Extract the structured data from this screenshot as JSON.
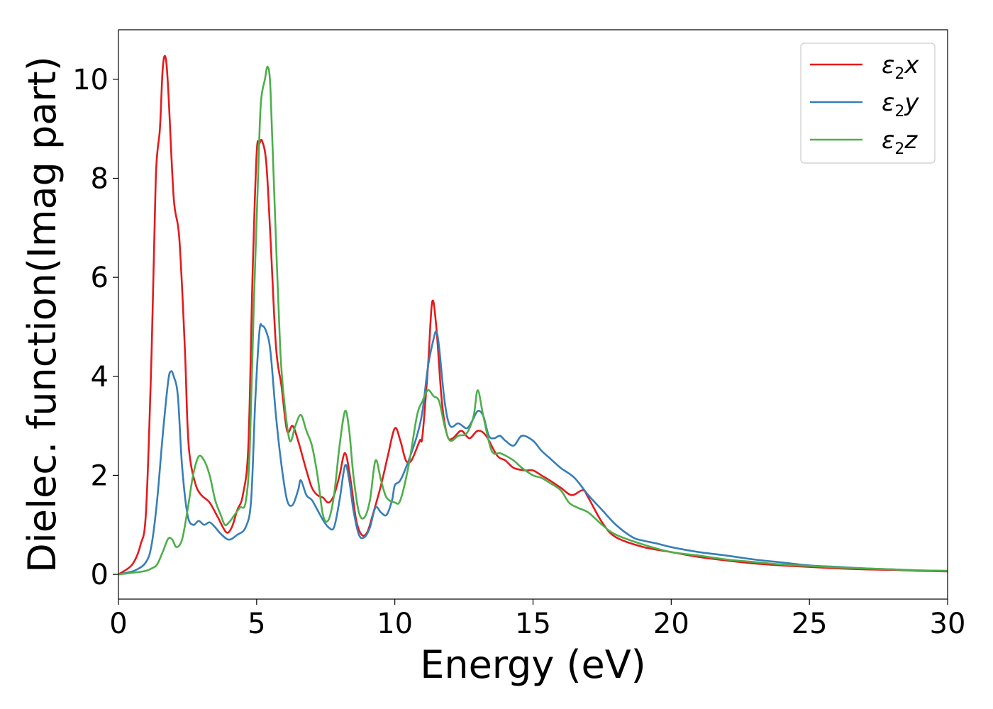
{
  "chart_data": {
    "type": "line",
    "xlabel": "Energy (eV)",
    "ylabel": "Dielec. function(Imag part)",
    "xlim": [
      0,
      30
    ],
    "ylim": [
      -0.5,
      11
    ],
    "x_ticks": [
      0,
      5,
      10,
      15,
      20,
      25,
      30
    ],
    "y_ticks": [
      0,
      2,
      4,
      6,
      8,
      10
    ],
    "grid": false,
    "legend_position": "top-right",
    "series": [
      {
        "name": "ε2x",
        "sym": "ε",
        "sub": "2",
        "var": "x",
        "color": "#e41a1c",
        "points": [
          [
            0,
            0
          ],
          [
            0.5,
            0.2
          ],
          [
            0.8,
            0.6
          ],
          [
            1.0,
            1.3
          ],
          [
            1.2,
            4.5
          ],
          [
            1.35,
            8.0
          ],
          [
            1.5,
            9.0
          ],
          [
            1.6,
            10.2
          ],
          [
            1.7,
            10.45
          ],
          [
            1.8,
            9.8
          ],
          [
            2.0,
            7.6
          ],
          [
            2.2,
            6.8
          ],
          [
            2.4,
            4.6
          ],
          [
            2.5,
            3.0
          ],
          [
            2.6,
            2.3
          ],
          [
            2.8,
            1.8
          ],
          [
            3.0,
            1.6
          ],
          [
            3.3,
            1.45
          ],
          [
            3.6,
            1.15
          ],
          [
            3.9,
            0.85
          ],
          [
            4.1,
            0.95
          ],
          [
            4.3,
            1.3
          ],
          [
            4.5,
            1.6
          ],
          [
            4.7,
            2.6
          ],
          [
            4.85,
            6.0
          ],
          [
            5.0,
            8.5
          ],
          [
            5.1,
            8.7
          ],
          [
            5.2,
            8.75
          ],
          [
            5.35,
            8.3
          ],
          [
            5.5,
            6.8
          ],
          [
            5.7,
            4.6
          ],
          [
            5.9,
            3.8
          ],
          [
            6.1,
            2.9
          ],
          [
            6.3,
            3.0
          ],
          [
            6.5,
            2.7
          ],
          [
            6.8,
            2.1
          ],
          [
            7.0,
            1.75
          ],
          [
            7.2,
            1.6
          ],
          [
            7.4,
            1.55
          ],
          [
            7.6,
            1.45
          ],
          [
            7.8,
            1.6
          ],
          [
            8.0,
            2.0
          ],
          [
            8.2,
            2.45
          ],
          [
            8.4,
            1.9
          ],
          [
            8.6,
            1.1
          ],
          [
            8.8,
            0.8
          ],
          [
            9.0,
            0.85
          ],
          [
            9.2,
            1.2
          ],
          [
            9.5,
            1.8
          ],
          [
            9.75,
            2.4
          ],
          [
            10.0,
            2.95
          ],
          [
            10.2,
            2.7
          ],
          [
            10.4,
            2.3
          ],
          [
            10.6,
            2.3
          ],
          [
            10.9,
            2.7
          ],
          [
            11.0,
            2.8
          ],
          [
            11.2,
            4.2
          ],
          [
            11.35,
            5.5
          ],
          [
            11.5,
            5.0
          ],
          [
            11.7,
            3.5
          ],
          [
            11.9,
            2.8
          ],
          [
            12.1,
            2.75
          ],
          [
            12.4,
            2.9
          ],
          [
            12.7,
            2.75
          ],
          [
            13.0,
            2.9
          ],
          [
            13.3,
            2.8
          ],
          [
            13.7,
            2.4
          ],
          [
            14.0,
            2.3
          ],
          [
            14.3,
            2.15
          ],
          [
            14.7,
            2.1
          ],
          [
            15.0,
            2.1
          ],
          [
            15.3,
            2.0
          ],
          [
            15.6,
            1.9
          ],
          [
            16.0,
            1.75
          ],
          [
            16.4,
            1.6
          ],
          [
            16.8,
            1.7
          ],
          [
            17.0,
            1.55
          ],
          [
            17.5,
            1.05
          ],
          [
            18.0,
            0.75
          ],
          [
            19.0,
            0.55
          ],
          [
            20.0,
            0.45
          ],
          [
            21.0,
            0.35
          ],
          [
            22.0,
            0.28
          ],
          [
            23.0,
            0.22
          ],
          [
            24.0,
            0.18
          ],
          [
            25.0,
            0.15
          ],
          [
            26.0,
            0.12
          ],
          [
            27.0,
            0.1
          ],
          [
            28.0,
            0.09
          ],
          [
            29.0,
            0.07
          ],
          [
            30.0,
            0.06
          ]
        ]
      },
      {
        "name": "ε2y",
        "sym": "ε",
        "sub": "2",
        "var": "y",
        "color": "#377eb8",
        "points": [
          [
            0,
            0
          ],
          [
            0.6,
            0.08
          ],
          [
            1.0,
            0.25
          ],
          [
            1.2,
            0.6
          ],
          [
            1.4,
            1.5
          ],
          [
            1.6,
            2.8
          ],
          [
            1.8,
            3.9
          ],
          [
            1.9,
            4.1
          ],
          [
            2.0,
            4.0
          ],
          [
            2.15,
            3.6
          ],
          [
            2.3,
            2.2
          ],
          [
            2.5,
            1.2
          ],
          [
            2.7,
            1.0
          ],
          [
            2.9,
            1.08
          ],
          [
            3.1,
            1.0
          ],
          [
            3.3,
            1.05
          ],
          [
            3.5,
            0.95
          ],
          [
            3.7,
            0.82
          ],
          [
            4.0,
            0.7
          ],
          [
            4.3,
            0.8
          ],
          [
            4.6,
            0.95
          ],
          [
            4.8,
            1.5
          ],
          [
            4.95,
            3.5
          ],
          [
            5.1,
            4.9
          ],
          [
            5.2,
            5.02
          ],
          [
            5.35,
            4.9
          ],
          [
            5.5,
            4.5
          ],
          [
            5.7,
            3.2
          ],
          [
            5.9,
            2.2
          ],
          [
            6.1,
            1.5
          ],
          [
            6.3,
            1.4
          ],
          [
            6.5,
            1.7
          ],
          [
            6.6,
            1.9
          ],
          [
            6.8,
            1.6
          ],
          [
            7.0,
            1.5
          ],
          [
            7.2,
            1.3
          ],
          [
            7.4,
            1.1
          ],
          [
            7.6,
            0.95
          ],
          [
            7.8,
            0.95
          ],
          [
            8.0,
            1.5
          ],
          [
            8.2,
            2.2
          ],
          [
            8.35,
            1.9
          ],
          [
            8.5,
            1.3
          ],
          [
            8.7,
            0.8
          ],
          [
            8.9,
            0.75
          ],
          [
            9.1,
            0.95
          ],
          [
            9.3,
            1.35
          ],
          [
            9.5,
            1.25
          ],
          [
            9.7,
            1.2
          ],
          [
            9.9,
            1.5
          ],
          [
            10.0,
            1.8
          ],
          [
            10.2,
            1.9
          ],
          [
            10.5,
            2.3
          ],
          [
            10.8,
            2.8
          ],
          [
            11.0,
            3.3
          ],
          [
            11.2,
            4.2
          ],
          [
            11.4,
            4.75
          ],
          [
            11.5,
            4.9
          ],
          [
            11.6,
            4.6
          ],
          [
            11.8,
            3.5
          ],
          [
            12.0,
            3.0
          ],
          [
            12.3,
            3.05
          ],
          [
            12.6,
            2.95
          ],
          [
            12.8,
            3.1
          ],
          [
            13.0,
            3.3
          ],
          [
            13.2,
            3.2
          ],
          [
            13.4,
            2.8
          ],
          [
            13.6,
            2.75
          ],
          [
            13.8,
            2.8
          ],
          [
            14.0,
            2.7
          ],
          [
            14.3,
            2.6
          ],
          [
            14.6,
            2.8
          ],
          [
            15.0,
            2.7
          ],
          [
            15.3,
            2.5
          ],
          [
            15.6,
            2.35
          ],
          [
            16.0,
            2.15
          ],
          [
            16.5,
            1.95
          ],
          [
            17.0,
            1.6
          ],
          [
            17.5,
            1.3
          ],
          [
            18.0,
            1.0
          ],
          [
            18.6,
            0.75
          ],
          [
            19.0,
            0.68
          ],
          [
            19.5,
            0.62
          ],
          [
            20.0,
            0.55
          ],
          [
            21.0,
            0.45
          ],
          [
            22.0,
            0.38
          ],
          [
            23.0,
            0.3
          ],
          [
            24.0,
            0.24
          ],
          [
            25.0,
            0.18
          ],
          [
            26.0,
            0.15
          ],
          [
            27.0,
            0.12
          ],
          [
            28.0,
            0.1
          ],
          [
            29.0,
            0.08
          ],
          [
            30.0,
            0.07
          ]
        ]
      },
      {
        "name": "ε2z",
        "sym": "ε",
        "sub": "2",
        "var": "z",
        "color": "#4daf4a",
        "points": [
          [
            0,
            0
          ],
          [
            0.9,
            0.06
          ],
          [
            1.2,
            0.12
          ],
          [
            1.4,
            0.2
          ],
          [
            1.6,
            0.45
          ],
          [
            1.8,
            0.72
          ],
          [
            1.95,
            0.7
          ],
          [
            2.1,
            0.55
          ],
          [
            2.3,
            0.7
          ],
          [
            2.5,
            1.3
          ],
          [
            2.7,
            2.0
          ],
          [
            2.9,
            2.38
          ],
          [
            3.1,
            2.3
          ],
          [
            3.3,
            2.0
          ],
          [
            3.5,
            1.5
          ],
          [
            3.7,
            1.2
          ],
          [
            3.85,
            1.0
          ],
          [
            4.0,
            1.05
          ],
          [
            4.2,
            1.2
          ],
          [
            4.4,
            1.35
          ],
          [
            4.6,
            1.45
          ],
          [
            4.75,
            2.5
          ],
          [
            4.9,
            5.5
          ],
          [
            5.05,
            8.0
          ],
          [
            5.15,
            9.5
          ],
          [
            5.3,
            10.0
          ],
          [
            5.4,
            10.25
          ],
          [
            5.5,
            9.8
          ],
          [
            5.65,
            7.5
          ],
          [
            5.85,
            4.6
          ],
          [
            6.0,
            3.5
          ],
          [
            6.2,
            2.7
          ],
          [
            6.4,
            3.0
          ],
          [
            6.6,
            3.22
          ],
          [
            6.8,
            2.9
          ],
          [
            7.0,
            2.6
          ],
          [
            7.2,
            2.0
          ],
          [
            7.4,
            1.2
          ],
          [
            7.6,
            1.1
          ],
          [
            7.8,
            1.6
          ],
          [
            8.0,
            2.6
          ],
          [
            8.2,
            3.3
          ],
          [
            8.35,
            2.9
          ],
          [
            8.5,
            2.0
          ],
          [
            8.7,
            1.25
          ],
          [
            8.9,
            1.15
          ],
          [
            9.1,
            1.5
          ],
          [
            9.3,
            2.3
          ],
          [
            9.5,
            1.9
          ],
          [
            9.7,
            1.55
          ],
          [
            10.0,
            1.45
          ],
          [
            10.2,
            1.5
          ],
          [
            10.5,
            2.2
          ],
          [
            10.8,
            3.2
          ],
          [
            11.0,
            3.5
          ],
          [
            11.2,
            3.72
          ],
          [
            11.4,
            3.6
          ],
          [
            11.6,
            3.5
          ],
          [
            11.8,
            3.0
          ],
          [
            12.0,
            2.7
          ],
          [
            12.3,
            2.8
          ],
          [
            12.6,
            2.85
          ],
          [
            12.85,
            3.2
          ],
          [
            13.0,
            3.72
          ],
          [
            13.2,
            3.2
          ],
          [
            13.5,
            2.5
          ],
          [
            13.8,
            2.45
          ],
          [
            14.0,
            2.4
          ],
          [
            14.3,
            2.3
          ],
          [
            14.6,
            2.15
          ],
          [
            15.0,
            2.0
          ],
          [
            15.3,
            1.95
          ],
          [
            15.6,
            1.85
          ],
          [
            16.0,
            1.7
          ],
          [
            16.3,
            1.45
          ],
          [
            16.6,
            1.35
          ],
          [
            17.0,
            1.25
          ],
          [
            17.5,
            1.0
          ],
          [
            18.0,
            0.8
          ],
          [
            19.0,
            0.6
          ],
          [
            20.0,
            0.45
          ],
          [
            21.0,
            0.38
          ],
          [
            22.0,
            0.3
          ],
          [
            23.0,
            0.25
          ],
          [
            24.0,
            0.2
          ],
          [
            25.0,
            0.17
          ],
          [
            26.0,
            0.14
          ],
          [
            27.0,
            0.12
          ],
          [
            28.0,
            0.1
          ],
          [
            29.0,
            0.08
          ],
          [
            30.0,
            0.07
          ]
        ]
      }
    ]
  }
}
